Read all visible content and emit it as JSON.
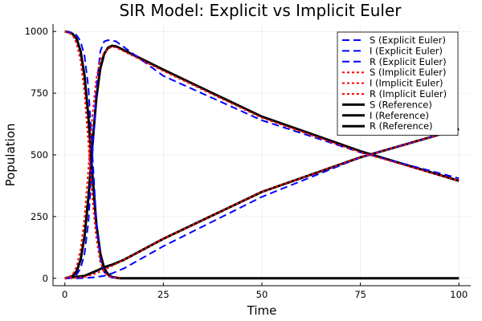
{
  "chart_data": {
    "type": "line",
    "title": "SIR Model: Explicit vs Implicit Euler",
    "xlabel": "Time",
    "ylabel": "Population",
    "xlim": [
      -3,
      103
    ],
    "ylim": [
      -30,
      1030
    ],
    "xticks": [
      0,
      25,
      50,
      75,
      100
    ],
    "yticks": [
      0,
      250,
      500,
      750,
      1000
    ],
    "grid": true,
    "legend_position": "top-right",
    "series": [
      {
        "name": "S (Explicit Euler)",
        "color": "#0000ff",
        "dash": "dashed",
        "x": [
          0,
          2,
          3,
          4,
          5,
          6,
          7,
          8,
          9,
          10,
          11,
          12,
          13,
          14
        ],
        "y": [
          1000,
          995,
          985,
          960,
          900,
          770,
          500,
          230,
          80,
          25,
          8,
          3,
          1,
          0
        ]
      },
      {
        "name": "I (Explicit Euler)",
        "color": "#0000ff",
        "dash": "dashed",
        "x": [
          0,
          2,
          3,
          4,
          5,
          6,
          7,
          8,
          9,
          10,
          11,
          12,
          13,
          25,
          50,
          75,
          100
        ],
        "y": [
          0,
          5,
          15,
          40,
          100,
          230,
          500,
          770,
          920,
          960,
          965,
          963,
          960,
          820,
          640,
          510,
          405
        ]
      },
      {
        "name": "R (Explicit Euler)",
        "color": "#0000ff",
        "dash": "dashed",
        "x": [
          0,
          4,
          6,
          8,
          10,
          12,
          15,
          25,
          50,
          75,
          100
        ],
        "y": [
          0,
          0,
          2,
          5,
          10,
          20,
          40,
          130,
          330,
          490,
          605
        ]
      },
      {
        "name": "S (Implicit Euler)",
        "color": "#ff0000",
        "dash": "dotted",
        "x": [
          0,
          1,
          2,
          3,
          4,
          5,
          6,
          7,
          8,
          9,
          10,
          11,
          12,
          14
        ],
        "y": [
          1000,
          995,
          985,
          950,
          880,
          750,
          540,
          320,
          160,
          65,
          25,
          10,
          4,
          0
        ]
      },
      {
        "name": "I (Implicit Euler)",
        "color": "#ff0000",
        "dash": "dotted",
        "x": [
          0,
          1,
          2,
          3,
          4,
          5,
          6,
          7,
          8,
          9,
          10,
          11,
          12,
          13,
          25,
          50,
          75,
          100
        ],
        "y": [
          0,
          5,
          15,
          48,
          118,
          245,
          450,
          660,
          810,
          885,
          915,
          930,
          938,
          935,
          840,
          650,
          510,
          395
        ]
      },
      {
        "name": "R (Implicit Euler)",
        "color": "#ff0000",
        "dash": "dotted",
        "x": [
          0,
          5,
          8,
          10,
          12,
          15,
          25,
          50,
          75,
          100
        ],
        "y": [
          0,
          5,
          20,
          35,
          50,
          75,
          160,
          350,
          490,
          605
        ]
      },
      {
        "name": "S (Reference)",
        "color": "#000000",
        "dash": "solid",
        "x": [
          0,
          1,
          2,
          3,
          4,
          5,
          6,
          7,
          8,
          9,
          10,
          11,
          12,
          14,
          100
        ],
        "y": [
          1000,
          997,
          990,
          970,
          920,
          820,
          650,
          420,
          220,
          100,
          40,
          15,
          5,
          0,
          0
        ]
      },
      {
        "name": "I (Reference)",
        "color": "#000000",
        "dash": "solid",
        "x": [
          0,
          1,
          2,
          3,
          4,
          5,
          6,
          7,
          8,
          9,
          10,
          11,
          12,
          13,
          25,
          50,
          75,
          100
        ],
        "y": [
          0,
          3,
          10,
          28,
          75,
          170,
          330,
          540,
          730,
          850,
          910,
          935,
          942,
          940,
          845,
          655,
          515,
          395
        ]
      },
      {
        "name": "R (Reference)",
        "color": "#000000",
        "dash": "solid",
        "x": [
          0,
          5,
          8,
          10,
          12,
          15,
          25,
          50,
          75,
          100
        ],
        "y": [
          0,
          10,
          30,
          45,
          55,
          75,
          160,
          350,
          490,
          605
        ]
      }
    ]
  }
}
